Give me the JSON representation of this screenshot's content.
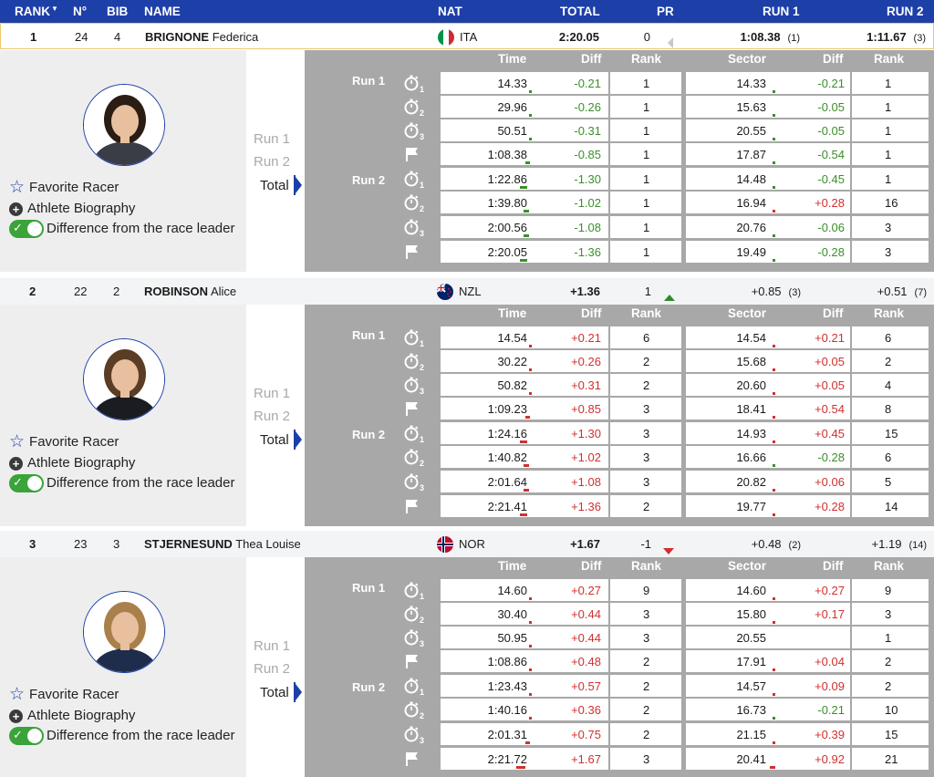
{
  "header": {
    "rank": "RANK",
    "no": "N°",
    "bib": "BIB",
    "name": "NAME",
    "nat": "NAT",
    "total": "TOTAL",
    "pr": "PR",
    "run1": "RUN 1",
    "run2": "RUN 2"
  },
  "colors": {
    "accent": "#1d3fa8",
    "negative": "#3a8f2a",
    "positive": "#d0302f",
    "toggle": "#3aa33a"
  },
  "options": {
    "favorite": "Favorite Racer",
    "biography": "Athlete Biography",
    "difference": "Difference from the race leader"
  },
  "run_selector": {
    "run1": "Run 1",
    "run2": "Run 2",
    "total": "Total"
  },
  "detail_headers": {
    "time": "Time",
    "diff": "Diff",
    "rank": "Rank",
    "sector": "Sector",
    "sdiff": "Diff",
    "srank": "Rank"
  },
  "run_labels": {
    "run1": "Run 1",
    "run2": "Run 2"
  },
  "split_icons": [
    "stopwatch-1-icon",
    "stopwatch-2-icon",
    "stopwatch-3-icon",
    "finish-flag-icon",
    "stopwatch-1-icon",
    "stopwatch-2-icon",
    "stopwatch-3-icon",
    "finish-flag-icon"
  ],
  "racers": [
    {
      "rank": "1",
      "no": "24",
      "bib": "4",
      "surname": "BRIGNONE",
      "firstname": "Federica",
      "nat": "ITA",
      "total": "2:20.05",
      "pr": "0",
      "pr_trend": "same",
      "run1": "1:08.38",
      "run1_rank": "(1)",
      "run2": "1:11.67",
      "run2_rank": "(3)",
      "splits": [
        [
          "14.33",
          "-0.21",
          "1",
          "14.33",
          "-0.21",
          "1"
        ],
        [
          "29.96",
          "-0.26",
          "1",
          "15.63",
          "-0.05",
          "1"
        ],
        [
          "50.51",
          "-0.31",
          "1",
          "20.55",
          "-0.05",
          "1"
        ],
        [
          "1:08.38",
          "-0.85",
          "1",
          "17.87",
          "-0.54",
          "1"
        ],
        [
          "1:22.86",
          "-1.30",
          "1",
          "14.48",
          "-0.45",
          "1"
        ],
        [
          "1:39.80",
          "-1.02",
          "1",
          "16.94",
          "+0.28",
          "16"
        ],
        [
          "2:00.56",
          "-1.08",
          "1",
          "20.76",
          "-0.06",
          "3"
        ],
        [
          "2:20.05",
          "-1.36",
          "1",
          "19.49",
          "-0.28",
          "3"
        ]
      ]
    },
    {
      "rank": "2",
      "no": "22",
      "bib": "2",
      "surname": "ROBINSON",
      "firstname": "Alice",
      "nat": "NZL",
      "total": "+1.36",
      "pr": "1",
      "pr_trend": "up",
      "run1": "+0.85",
      "run1_rank": "(3)",
      "run2": "+0.51",
      "run2_rank": "(7)",
      "splits": [
        [
          "14.54",
          "+0.21",
          "6",
          "14.54",
          "+0.21",
          "6"
        ],
        [
          "30.22",
          "+0.26",
          "2",
          "15.68",
          "+0.05",
          "2"
        ],
        [
          "50.82",
          "+0.31",
          "2",
          "20.60",
          "+0.05",
          "4"
        ],
        [
          "1:09.23",
          "+0.85",
          "3",
          "18.41",
          "+0.54",
          "8"
        ],
        [
          "1:24.16",
          "+1.30",
          "3",
          "14.93",
          "+0.45",
          "15"
        ],
        [
          "1:40.82",
          "+1.02",
          "3",
          "16.66",
          "-0.28",
          "6"
        ],
        [
          "2:01.64",
          "+1.08",
          "3",
          "20.82",
          "+0.06",
          "5"
        ],
        [
          "2:21.41",
          "+1.36",
          "2",
          "19.77",
          "+0.28",
          "14"
        ]
      ]
    },
    {
      "rank": "3",
      "no": "23",
      "bib": "3",
      "surname": "STJERNESUND",
      "firstname": "Thea Louise",
      "nat": "NOR",
      "total": "+1.67",
      "pr": "-1",
      "pr_trend": "down",
      "run1": "+0.48",
      "run1_rank": "(2)",
      "run2": "+1.19",
      "run2_rank": "(14)",
      "splits": [
        [
          "14.60",
          "+0.27",
          "9",
          "14.60",
          "+0.27",
          "9"
        ],
        [
          "30.40",
          "+0.44",
          "3",
          "15.80",
          "+0.17",
          "3"
        ],
        [
          "50.95",
          "+0.44",
          "3",
          "20.55",
          "",
          "1"
        ],
        [
          "1:08.86",
          "+0.48",
          "2",
          "17.91",
          "+0.04",
          "2"
        ],
        [
          "1:23.43",
          "+0.57",
          "2",
          "14.57",
          "+0.09",
          "2"
        ],
        [
          "1:40.16",
          "+0.36",
          "2",
          "16.73",
          "-0.21",
          "10"
        ],
        [
          "2:01.31",
          "+0.75",
          "2",
          "21.15",
          "+0.39",
          "15"
        ],
        [
          "2:21.72",
          "+1.67",
          "3",
          "20.41",
          "+0.92",
          "21"
        ]
      ]
    }
  ]
}
